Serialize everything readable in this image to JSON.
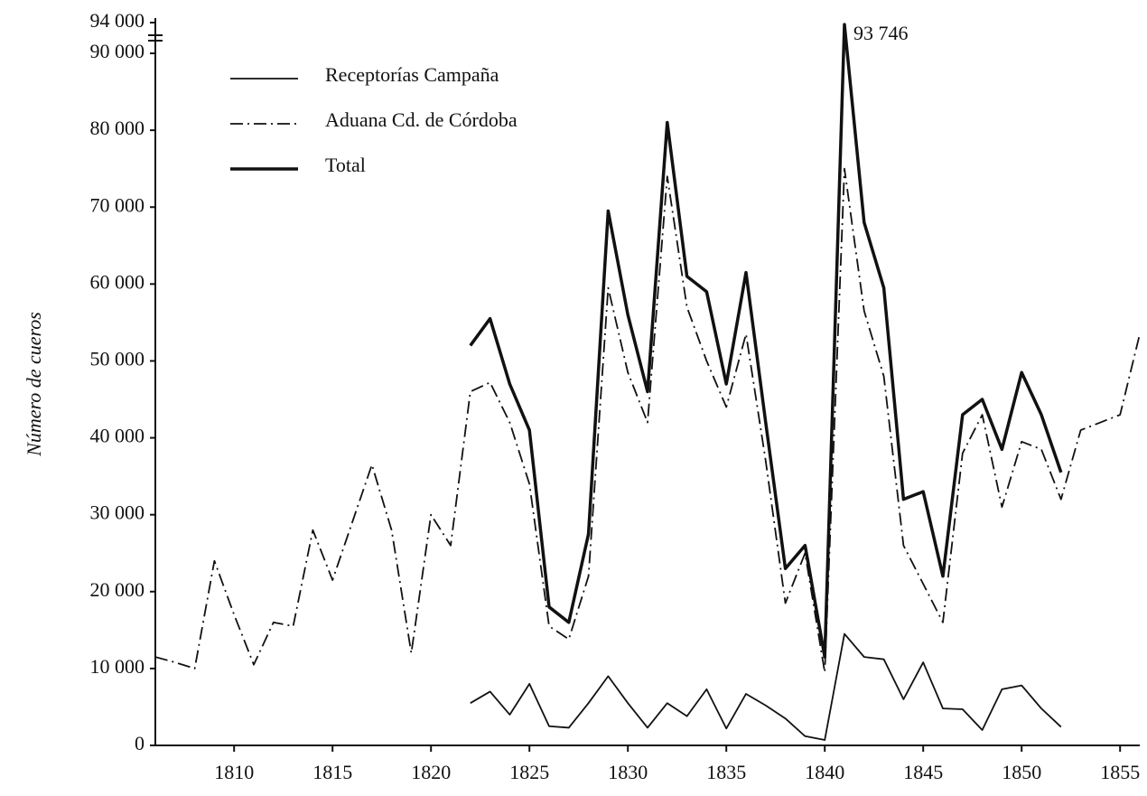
{
  "chart_data": {
    "type": "line",
    "y_label": "Número de cueros",
    "annotations": [
      {
        "text": "93 746",
        "x": 1841,
        "y": 93746
      }
    ],
    "x": [
      1806,
      1807,
      1808,
      1809,
      1810,
      1811,
      1812,
      1813,
      1814,
      1815,
      1816,
      1817,
      1818,
      1819,
      1820,
      1821,
      1822,
      1823,
      1824,
      1825,
      1826,
      1827,
      1828,
      1829,
      1830,
      1831,
      1832,
      1833,
      1834,
      1835,
      1836,
      1837,
      1838,
      1839,
      1840,
      1841,
      1842,
      1843,
      1844,
      1845,
      1846,
      1847,
      1848,
      1849,
      1850,
      1851,
      1852,
      1853,
      1854,
      1855,
      1856
    ],
    "series": [
      {
        "name": "Receptorías Campaña",
        "color": "#111111",
        "style": "solid",
        "values": [
          null,
          null,
          null,
          null,
          null,
          null,
          null,
          null,
          null,
          null,
          null,
          null,
          null,
          null,
          null,
          null,
          5500,
          7000,
          4000,
          8000,
          2500,
          2300,
          5500,
          9000,
          5500,
          2300,
          5500,
          3800,
          7300,
          2200,
          6700,
          5200,
          3500,
          1200,
          700,
          14500,
          11500,
          11200,
          6000,
          10800,
          4800,
          4700,
          2000,
          7300,
          7800,
          4800,
          2400,
          null,
          null,
          null,
          null
        ]
      },
      {
        "name": "Aduana Cd. de Córdoba",
        "color": "#111111",
        "style": "dashdot",
        "values": [
          11500,
          10800,
          10000,
          24000,
          17000,
          10500,
          16000,
          15500,
          28000,
          21500,
          29000,
          36500,
          28000,
          12000,
          30000,
          26000,
          46000,
          47200,
          42000,
          34000,
          15500,
          13800,
          22000,
          59500,
          48500,
          42000,
          74000,
          57000,
          50000,
          44000,
          53500,
          37000,
          18500,
          25000,
          9500,
          75000,
          56500,
          48000,
          26000,
          21000,
          16000,
          38000,
          43000,
          31000,
          39500,
          38500,
          32000,
          41000,
          42000,
          43000,
          53500
        ]
      },
      {
        "name": "Total",
        "color": "#111111",
        "style": "bold",
        "values": [
          null,
          null,
          null,
          null,
          null,
          null,
          null,
          null,
          null,
          null,
          null,
          null,
          null,
          null,
          null,
          null,
          52000,
          55500,
          47000,
          41000,
          18000,
          16000,
          27500,
          69500,
          56000,
          46000,
          81000,
          61000,
          59000,
          47000,
          61500,
          42000,
          23000,
          26000,
          11500,
          93746,
          68000,
          59500,
          32000,
          33000,
          22000,
          43000,
          45000,
          38500,
          48500,
          43000,
          35500,
          null,
          null,
          null,
          null
        ]
      }
    ],
    "xlim": [
      1806,
      1856
    ],
    "xticks": [
      1810,
      1815,
      1820,
      1825,
      1830,
      1835,
      1840,
      1845,
      1850,
      1855
    ],
    "ylim": [
      0,
      94000
    ],
    "yticks": [
      0,
      {
        "value": 10000,
        "label": "10 000"
      },
      {
        "value": 20000,
        "label": "20 000"
      },
      {
        "value": 30000,
        "label": "30 000"
      },
      {
        "value": 40000,
        "label": "40 000"
      },
      {
        "value": 50000,
        "label": "50 000"
      },
      {
        "value": 60000,
        "label": "60 000"
      },
      {
        "value": 70000,
        "label": "70 000"
      },
      {
        "value": 80000,
        "label": "80 000"
      },
      {
        "value": 90000,
        "label": "90 000"
      },
      {
        "value": 94000,
        "label": "94 000"
      }
    ],
    "grid": false,
    "legend": "upper left"
  }
}
